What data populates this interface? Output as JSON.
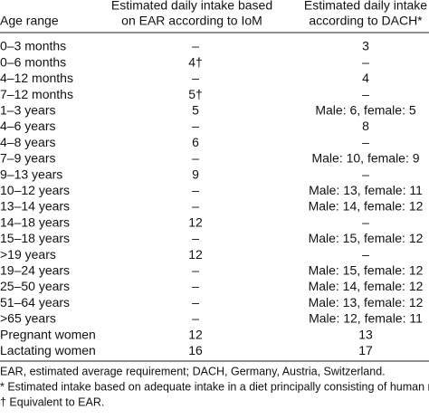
{
  "table": {
    "header": [
      [
        "Age range"
      ],
      [
        "Estimated daily intake based",
        "on EAR according to IoM"
      ],
      [
        "Estimated daily intake",
        "according to DACH*"
      ]
    ],
    "rows": [
      [
        "0–3 months",
        "–",
        "3"
      ],
      [
        "0–6 months",
        "4†",
        "–"
      ],
      [
        "4–12 months",
        "–",
        "4"
      ],
      [
        "7–12 months",
        "5†",
        "–"
      ],
      [
        "1–3 years",
        "5",
        "Male: 6, female: 5"
      ],
      [
        "4–6 years",
        "–",
        "8"
      ],
      [
        "4–8 years",
        "6",
        "–"
      ],
      [
        "7–9 years",
        "–",
        "Male: 10, female: 9"
      ],
      [
        "9–13 years",
        "9",
        "–"
      ],
      [
        "10–12 years",
        "–",
        "Male: 13, female: 11"
      ],
      [
        "13–14 years",
        "–",
        "Male: 14, female: 12"
      ],
      [
        "14–18 years",
        "12",
        "–"
      ],
      [
        "15–18 years",
        "–",
        "Male: 15, female: 12"
      ],
      [
        ">19 years",
        "12",
        "–"
      ],
      [
        "19–24 years",
        "–",
        "Male: 15, female: 12"
      ],
      [
        "25–50 years",
        "–",
        "Male: 14, female: 12"
      ],
      [
        "51–64 years",
        "–",
        "Male: 13, female: 12"
      ],
      [
        ">65 years",
        "–",
        "Male: 12, female: 11"
      ],
      [
        "Pregnant women",
        "12",
        "13"
      ],
      [
        "Lactating women",
        "16",
        "17"
      ]
    ],
    "footnotes": [
      "EAR, estimated average requirement; DACH, Germany, Austria, Switzerland.",
      "* Estimated intake based on adequate intake in a diet principally consisting of human milk.",
      "† Equivalent to EAR."
    ]
  }
}
